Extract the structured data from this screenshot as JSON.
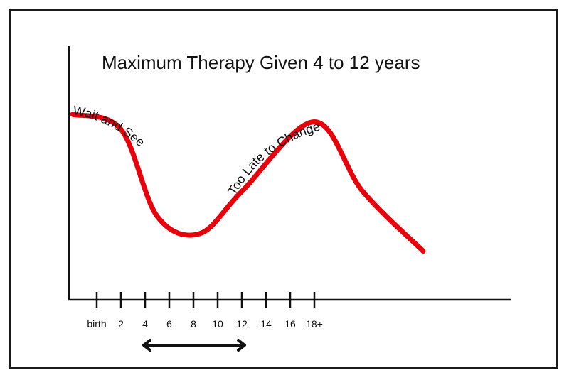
{
  "chart_data": {
    "type": "line",
    "title": "Maximum Therapy Given 4 to 12 years",
    "xlabel": "",
    "ylabel": "",
    "x_tick_labels": [
      "birth",
      "2",
      "4",
      "6",
      "8",
      "10",
      "12",
      "14",
      "16",
      "18+"
    ],
    "x_tick_values": [
      0,
      2,
      4,
      6,
      8,
      10,
      12,
      14,
      16,
      18
    ],
    "xlim": [
      -2,
      28
    ],
    "ylim": [
      0,
      10
    ],
    "grid": false,
    "series": [
      {
        "name": "",
        "color": "#e8000b",
        "points": [
          {
            "x": -2,
            "y": 7.4
          },
          {
            "x": 2,
            "y": 6.8
          },
          {
            "x": 5,
            "y": 3.3
          },
          {
            "x": 8.5,
            "y": 2.6
          },
          {
            "x": 12,
            "y": 4.3
          },
          {
            "x": 18,
            "y": 7.1
          },
          {
            "x": 22,
            "y": 4.3
          },
          {
            "x": 27,
            "y": 1.9
          }
        ]
      }
    ],
    "annotations": [
      {
        "text": "Wait and See",
        "along_segment": "descending"
      },
      {
        "text": "Too Late to Change",
        "along_segment": "ascending"
      }
    ],
    "range_indicator": {
      "from": 4,
      "to": 12
    }
  }
}
